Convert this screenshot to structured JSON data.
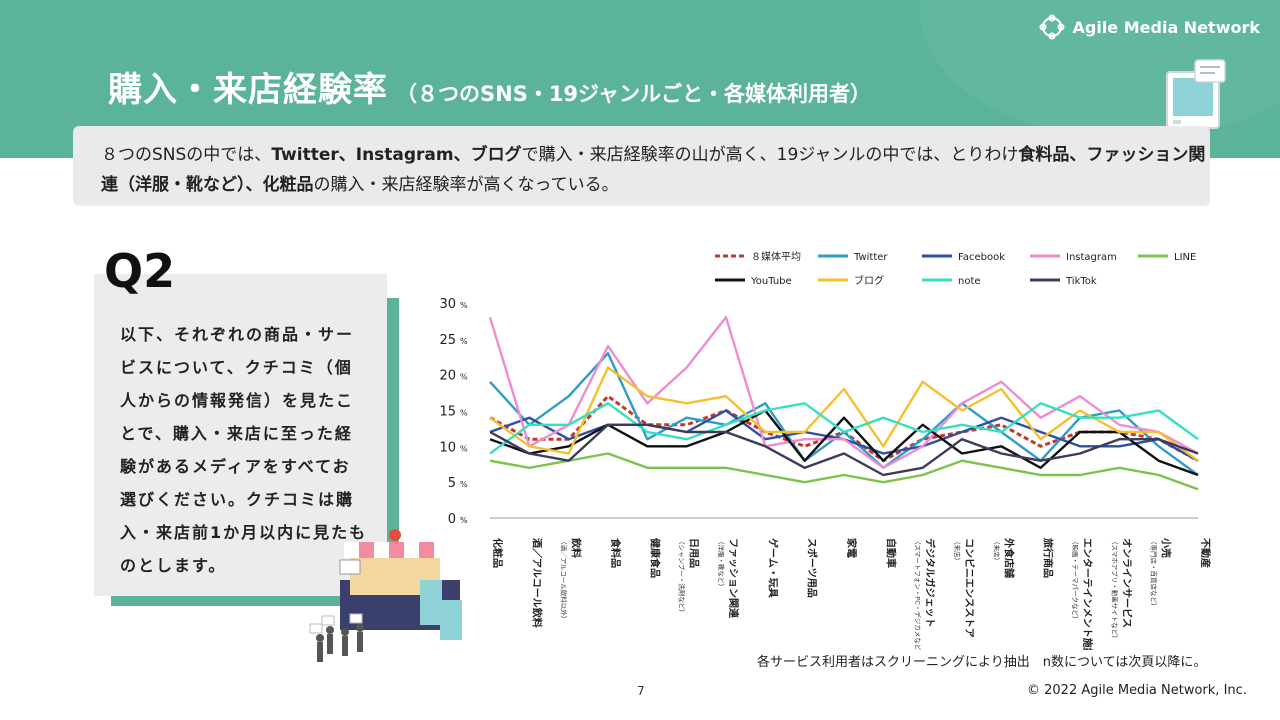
{
  "brand": {
    "name": "Agile Media Network",
    "logo_icon": "flower-outline-icon"
  },
  "title": {
    "main": "購入・来店経験率",
    "sub": "（８つのSNS・19ジャンルごと・各媒体利用者）"
  },
  "summary": {
    "parts": [
      {
        "t": "８つのSNSの中では、",
        "b": false
      },
      {
        "t": "Twitter、Instagram、ブログ",
        "b": true
      },
      {
        "t": "で購入・来店経験率の山が高く、19ジャンルの中では、とりわけ",
        "b": false
      },
      {
        "t": "食料品、",
        "b": true
      },
      {
        "t": "ファッション関連（洋服・靴など）、化粧品",
        "b": true
      },
      {
        "t": "の購入・来店経験率が高くなっている。",
        "b": false
      }
    ]
  },
  "question": {
    "label": "Q2",
    "text": "以下、それぞれの商品・サービスについて、クチコミ（個人からの情報発信）を見たことで、購入・来店に至った経験があるメディアをすべてお選びください。クチコミは購入・来店前1か月以内に見たものとします。"
  },
  "chart_data": {
    "type": "line",
    "xlabel": "",
    "ylabel": "",
    "y_unit": "%",
    "ylim": [
      0,
      30
    ],
    "yticks": [
      0,
      5,
      10,
      15,
      20,
      25,
      30
    ],
    "grid": false,
    "legend_position": "top",
    "categories": [
      {
        "main": "化粧品",
        "note": ""
      },
      {
        "main": "酒／アルコール飲料",
        "note": ""
      },
      {
        "main": "飲料",
        "note": "（酒／アルコール飲料以外）"
      },
      {
        "main": "食料品",
        "note": ""
      },
      {
        "main": "健康食品",
        "note": ""
      },
      {
        "main": "日用品",
        "note": "（シャンプー・洗剤など）"
      },
      {
        "main": "ファッション関連",
        "note": "（洋服・靴など）"
      },
      {
        "main": "ゲーム・玩具",
        "note": ""
      },
      {
        "main": "スポーツ用品",
        "note": ""
      },
      {
        "main": "家電",
        "note": ""
      },
      {
        "main": "自動車",
        "note": ""
      },
      {
        "main": "デジタルガジェット",
        "note": "（スマートフォン・PC・デジカメなど）"
      },
      {
        "main": "コンビニエンスストア",
        "note": "（来店）"
      },
      {
        "main": "外食店舗",
        "note": "（来店）"
      },
      {
        "main": "旅行商品",
        "note": ""
      },
      {
        "main": "エンターテインメント施設",
        "note": "（映画・テーマパークなど）"
      },
      {
        "main": "オンラインサービス",
        "note": "（スマホアプリ・動画サイトなど）"
      },
      {
        "main": "小売",
        "note": "（専門店・百貨店など）"
      },
      {
        "main": "不動産",
        "note": ""
      }
    ],
    "series": [
      {
        "name": "８媒体平均",
        "color": "#c0392b",
        "dashed": true,
        "values": [
          14,
          11,
          11,
          17,
          13,
          13,
          15,
          12,
          10,
          12,
          8,
          11,
          12,
          13,
          10,
          12,
          12,
          11,
          8
        ]
      },
      {
        "name": "Twitter",
        "color": "#2e9bc9",
        "dashed": false,
        "values": [
          19,
          13,
          17,
          23,
          11,
          14,
          13,
          16,
          8,
          12,
          7,
          11,
          16,
          12,
          8,
          14,
          15,
          10,
          6
        ]
      },
      {
        "name": "Facebook",
        "color": "#2f4ea0",
        "dashed": false,
        "values": [
          12,
          14,
          11,
          13,
          13,
          12,
          15,
          11,
          12,
          11,
          9,
          10,
          12,
          14,
          12,
          10,
          10,
          11,
          8
        ]
      },
      {
        "name": "Instagram",
        "color": "#f08bd0",
        "dashed": false,
        "values": [
          28,
          10,
          13,
          24,
          16,
          21,
          28,
          10,
          11,
          11,
          7,
          10,
          16,
          19,
          14,
          17,
          13,
          12,
          9
        ]
      },
      {
        "name": "LINE",
        "color": "#7dc24b",
        "dashed": false,
        "values": [
          8,
          7,
          8,
          9,
          7,
          7,
          7,
          6,
          5,
          6,
          5,
          6,
          8,
          7,
          6,
          6,
          7,
          6,
          4
        ]
      },
      {
        "name": "YouTube",
        "color": "#111111",
        "dashed": false,
        "values": [
          11,
          9,
          10,
          13,
          10,
          10,
          12,
          15,
          8,
          14,
          8,
          13,
          9,
          10,
          7,
          12,
          12,
          8,
          6
        ]
      },
      {
        "name": "ブログ",
        "color": "#f5c02c",
        "dashed": false,
        "values": [
          14,
          10,
          9,
          21,
          17,
          16,
          17,
          12,
          12,
          18,
          10,
          19,
          15,
          18,
          11,
          15,
          12,
          12,
          8
        ]
      },
      {
        "name": "note",
        "color": "#35e0c0",
        "dashed": false,
        "values": [
          9,
          13,
          13,
          16,
          12,
          11,
          13,
          15,
          16,
          12,
          14,
          12,
          13,
          12,
          16,
          14,
          14,
          15,
          11
        ]
      },
      {
        "name": "TikTok",
        "color": "#3e3a5c",
        "dashed": false,
        "values": [
          12,
          9,
          8,
          13,
          13,
          12,
          12,
          10,
          7,
          9,
          6,
          7,
          11,
          9,
          8,
          9,
          11,
          11,
          9
        ]
      }
    ]
  },
  "footnote": "各サービス利用者はスクリーニングにより抽出　n数については次頁以降に。",
  "page_number": "7",
  "copyright": "© 2022 Agile Media Network, Inc."
}
